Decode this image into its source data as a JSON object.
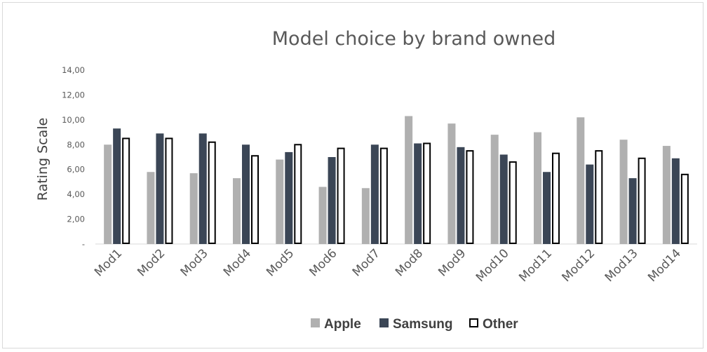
{
  "chart_data": {
    "type": "bar",
    "title": "Model choice by brand owned",
    "ylabel": "Rating Scale",
    "xlabel": "",
    "ylim": [
      0,
      14
    ],
    "y_ticks": [
      "-",
      "2,00",
      "4,00",
      "6,00",
      "8,00",
      "10,00",
      "12,00",
      "14,00"
    ],
    "categories": [
      "Mod1",
      "Mod2",
      "Mod3",
      "Mod4",
      "Mod5",
      "Mod6",
      "Mod7",
      "Mod8",
      "Mod9",
      "Mod10",
      "Mod11",
      "Mod12",
      "Mod13",
      "Mod14"
    ],
    "series": [
      {
        "name": "Apple",
        "color": "#b0b0b0",
        "values": [
          8.0,
          5.8,
          5.7,
          5.3,
          6.8,
          4.6,
          4.5,
          10.3,
          9.7,
          8.8,
          9.0,
          10.2,
          8.4,
          7.9
        ]
      },
      {
        "name": "Samsung",
        "color": "#3b4656",
        "values": [
          9.3,
          8.9,
          8.9,
          8.0,
          7.4,
          7.0,
          8.0,
          8.1,
          7.8,
          7.2,
          5.8,
          6.4,
          5.3,
          6.9
        ]
      },
      {
        "name": "Other",
        "color": "#ffffff",
        "stroke": "#000000",
        "values": [
          8.5,
          8.5,
          8.2,
          7.1,
          8.0,
          7.7,
          7.7,
          8.1,
          7.5,
          6.6,
          7.3,
          7.5,
          6.9,
          5.6
        ]
      }
    ],
    "grid": false,
    "legend_position": "bottom"
  }
}
